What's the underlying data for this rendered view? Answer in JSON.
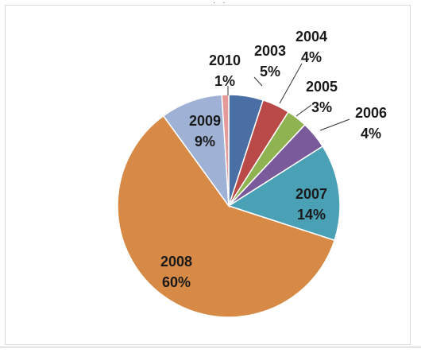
{
  "header_fragment": "· ˙ ·",
  "chart_data": {
    "type": "pie",
    "title": "",
    "slices": [
      {
        "label": "2003",
        "value": 5,
        "display": "5%",
        "color": "#4a6fa5"
      },
      {
        "label": "2004",
        "value": 4,
        "display": "4%",
        "color": "#b94a48"
      },
      {
        "label": "2005",
        "value": 3,
        "display": "3%",
        "color": "#8fb350"
      },
      {
        "label": "2006",
        "value": 4,
        "display": "4%",
        "color": "#7a5a9a"
      },
      {
        "label": "2007",
        "value": 14,
        "display": "14%",
        "color": "#4aa0b5"
      },
      {
        "label": "2008",
        "value": 60,
        "display": "60%",
        "color": "#d68a45"
      },
      {
        "label": "2009",
        "value": 9,
        "display": "9%",
        "color": "#9fb2d6"
      },
      {
        "label": "2010",
        "value": 1,
        "display": "1%",
        "color": "#e59a9a"
      }
    ],
    "start_angle_deg": 0,
    "direction": "clockwise",
    "legend": "none",
    "data_labels": "category and percentage"
  }
}
